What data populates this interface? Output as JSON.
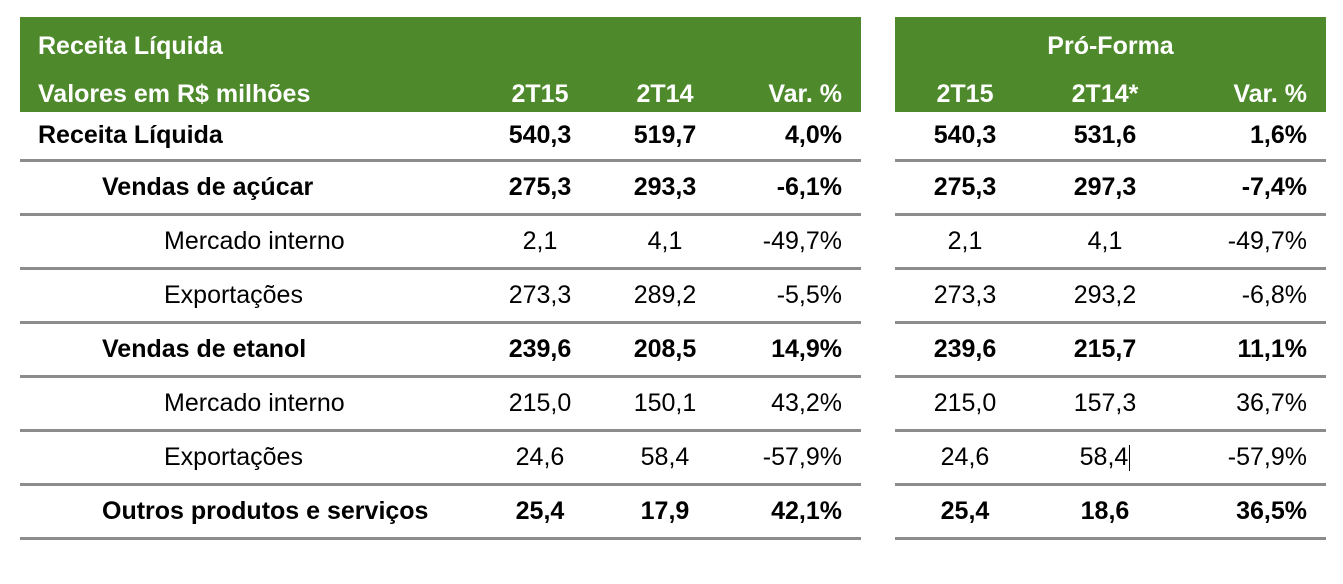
{
  "header": {
    "title": "Receita Líquida",
    "subtitle": "Valores em R$ milhões",
    "proforma_title": "Pró-Forma",
    "col_2t15": "2T15",
    "col_2t14": "2T14",
    "col_var": "Var. %",
    "pf_col_2t15": "2T15",
    "pf_col_2t14": "2T14*",
    "pf_col_var": "Var. %"
  },
  "rows": [
    {
      "label": "Receita Líquida",
      "v2t15": "540,3",
      "v2t14": "519,7",
      "var": "4,0%",
      "pf2t15": "540,3",
      "pf2t14": "531,6",
      "pfvar": "1,6%"
    },
    {
      "label": "Vendas de açúcar",
      "v2t15": "275,3",
      "v2t14": "293,3",
      "var": "-6,1%",
      "pf2t15": "275,3",
      "pf2t14": "297,3",
      "pfvar": "-7,4%"
    },
    {
      "label": "Mercado interno",
      "v2t15": "2,1",
      "v2t14": "4,1",
      "var": "-49,7%",
      "pf2t15": "2,1",
      "pf2t14": "4,1",
      "pfvar": "-49,7%"
    },
    {
      "label": "Exportações",
      "v2t15": "273,3",
      "v2t14": "289,2",
      "var": "-5,5%",
      "pf2t15": "273,3",
      "pf2t14": "293,2",
      "pfvar": "-6,8%"
    },
    {
      "label": "Vendas de etanol",
      "v2t15": "239,6",
      "v2t14": "208,5",
      "var": "14,9%",
      "pf2t15": "239,6",
      "pf2t14": "215,7",
      "pfvar": "11,1%"
    },
    {
      "label": "Mercado interno",
      "v2t15": "215,0",
      "v2t14": "150,1",
      "var": "43,2%",
      "pf2t15": "215,0",
      "pf2t14": "157,3",
      "pfvar": "36,7%"
    },
    {
      "label": "Exportações",
      "v2t15": "24,6",
      "v2t14": "58,4",
      "var": "-57,9%",
      "pf2t15": "24,6",
      "pf2t14": "58,4",
      "pfvar": "-57,9%"
    },
    {
      "label": "Outros produtos e serviços",
      "v2t15": "25,4",
      "v2t14": "17,9",
      "var": "42,1%",
      "pf2t15": "25,4",
      "pf2t14": "18,6",
      "pfvar": "36,5%"
    }
  ],
  "colors": {
    "header_bg": "#4e8a2c",
    "header_text": "#ffffff",
    "rule": "#8c8c8c"
  }
}
